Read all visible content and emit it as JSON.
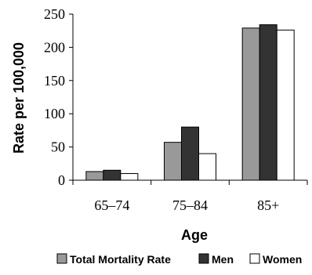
{
  "chart_data": {
    "type": "bar",
    "categories": [
      "65–74",
      "75–84",
      "85+"
    ],
    "series": [
      {
        "name": "Total Mortality Rate",
        "values": [
          13,
          57,
          229
        ],
        "color": "#999999"
      },
      {
        "name": "Men",
        "values": [
          15,
          80,
          234
        ],
        "color": "#333333"
      },
      {
        "name": "Women",
        "values": [
          10,
          40,
          226
        ],
        "color": "#ffffff"
      }
    ],
    "title": "",
    "xlabel": "Age",
    "ylabel": "Rate per 100,000",
    "ylim": [
      0,
      250
    ],
    "yticks": [
      "0",
      "50",
      "100",
      "150",
      "200",
      "250"
    ],
    "grid": false,
    "legend_position": "bottom"
  }
}
